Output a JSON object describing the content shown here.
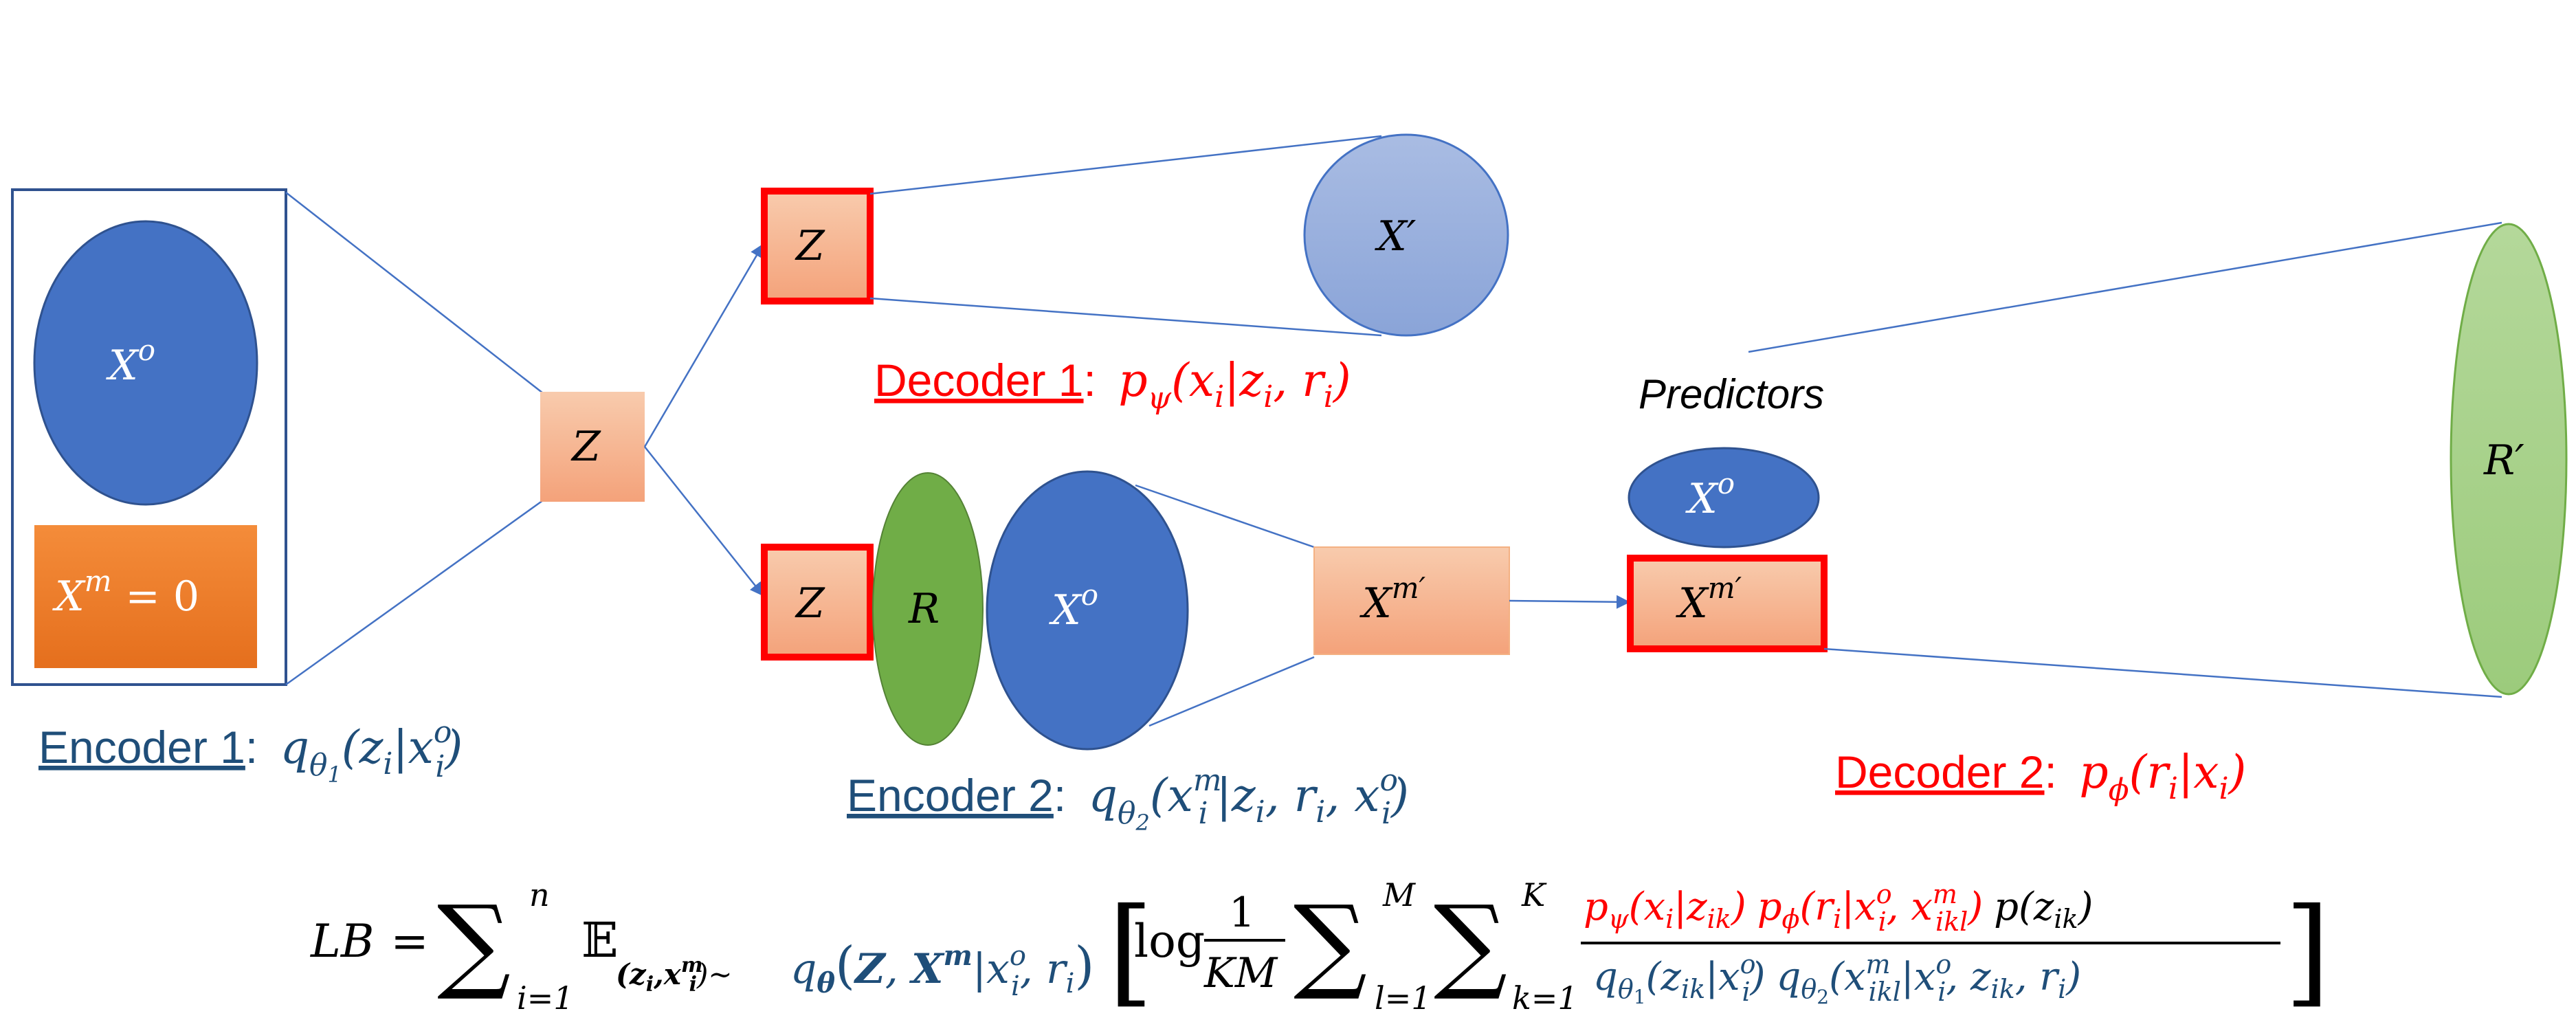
{
  "colors": {
    "blue": "#4472c4",
    "blue_dark": "#2f528f",
    "orange": "#ed7d31",
    "salmon": "#f4b183",
    "green": "#70ad47",
    "green_light": "#a9d18e",
    "lavender": "#8faadc",
    "red": "#ff0000",
    "navy_text": "#1f4e79"
  },
  "encoder1": {
    "xo": "X",
    "xo_sup": "o",
    "xm": "X",
    "xm_sup": "m",
    "xm_eq": "= 0",
    "z": "Z",
    "label_name": "Encoder 1",
    "label_colon": ":",
    "formula_q": "q",
    "formula_sub": "θ",
    "formula_subsub": "1",
    "formula_args": "(z",
    "formula_i": "i",
    "formula_bar": "|x",
    "formula_o": "o",
    "formula_i2": "i",
    "formula_close": ")"
  },
  "decoder1": {
    "z": "Z",
    "xprime": "X′",
    "label_name": "Decoder 1",
    "label_colon": ":",
    "formula": "p",
    "formula_sub": "ψ",
    "formula_args": "(x",
    "formula_i": "i",
    "formula_bar": "|z",
    "formula_i2": "i",
    "formula_comma": ", r",
    "formula_i3": "i",
    "formula_close": ")"
  },
  "encoder2": {
    "z": "Z",
    "r": "R",
    "xo": "X",
    "xo_sup": "o",
    "xm_prime": "X",
    "xm_prime_sup": "m′",
    "label_name": "Encoder 2",
    "label_colon": ":",
    "formula_q": "q",
    "formula_sub": "θ",
    "formula_subsub": "2",
    "formula_args": "(x",
    "formula_m": "m",
    "formula_i": "i",
    "formula_bar": "|z",
    "formula_i2": "i",
    "formula_r": ", r",
    "formula_i3": "i",
    "formula_x": ", x",
    "formula_o": "o",
    "formula_i4": "i",
    "formula_close": ")"
  },
  "decoder2": {
    "predictors": "Predictors",
    "xo": "X",
    "xo_sup": "o",
    "xm_prime": "X",
    "xm_prime_sup": "m′",
    "rprime": "R′",
    "label_name": "Decoder 2",
    "label_colon": ":",
    "formula": "p",
    "formula_sub": "ϕ",
    "formula_args": "(r",
    "formula_i": "i",
    "formula_bar": "|x",
    "formula_i2": "i",
    "formula_close": ")"
  },
  "lb": {
    "lhs": "LB",
    "eq": "=",
    "sum": "∑",
    "sum1_top": "n",
    "sum1_bot": "i=1",
    "expect": "𝔼",
    "expect_sub": "(z",
    "expect_sub_i": "i",
    "expect_sub_x": ",x",
    "expect_sub_m": "m",
    "expect_sub_i2": "i",
    "expect_sub_tilde": ")~",
    "q_main": "q",
    "q_sub": "θ",
    "q_args_open": "(",
    "q_args_Z": "Z",
    "q_args_comma": ", ",
    "q_args_X": "X",
    "q_args_m": "m",
    "q_args_bar": "|x",
    "q_args_o": "o",
    "q_args_i": "i",
    "q_args_r": ", r",
    "q_args_i2": "i",
    "q_args_close": ")",
    "bracket_open": "[",
    "bracket_close": "]",
    "log": "log",
    "frac_num": "1",
    "frac_den": "KM",
    "sum2_top": "M",
    "sum2_bot": "l=1",
    "sum3_top": "K",
    "sum3_bot": "k=1",
    "num_red": "p",
    "num_psi": "ψ",
    "num_a": "(x",
    "num_a_i": "i",
    "num_a_bar": "|z",
    "num_a_ik": "ik",
    "num_a_close": ")",
    "num_p2": "p",
    "num_phi": "ϕ",
    "num_b": "(r",
    "num_b_i": "i",
    "num_b_bar": "|x",
    "num_b_o": "o",
    "num_b_i2": "i",
    "num_b_comma": ", x",
    "num_b_m": "m",
    "num_b_ikl": "ikl",
    "num_b_close": ")",
    "num_black": "p(z",
    "num_black_ik": "ik",
    "num_black_close": ")",
    "den_q1": "q",
    "den_theta1": "θ",
    "den_one": "1",
    "den_a": "(z",
    "den_a_ik": "ik",
    "den_a_bar": "|x",
    "den_a_o": "o",
    "den_a_i": "i",
    "den_a_close": ")",
    "den_q2": "q",
    "den_theta2": "θ",
    "den_two": "2",
    "den_b": "(x",
    "den_b_m": "m",
    "den_b_ikl": "ikl",
    "den_b_bar": "|x",
    "den_b_o": "o",
    "den_b_i": "i",
    "den_b_z": ", z",
    "den_b_ik": "ik",
    "den_b_r": ", r",
    "den_b_i2": "i",
    "den_b_close": ")"
  }
}
